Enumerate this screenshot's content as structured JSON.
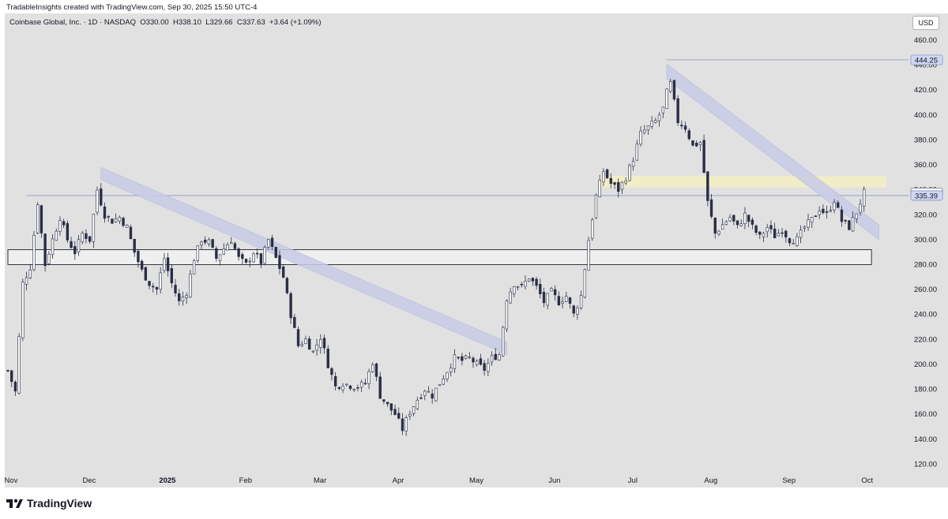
{
  "header": {
    "attribution": "TradableInsights created with TradingView.com, Sep 30, 2025 15:50 UTC-4"
  },
  "legend": {
    "symbol": "Coinbase Global, Inc. · 1D · NASDAQ",
    "open": "O330.00",
    "high": "H338.10",
    "low": "L329.66",
    "close": "C337.63",
    "change": "+3.64 (+1.09%)"
  },
  "currency": "USD",
  "footer": {
    "brand": "TradingView"
  },
  "colors": {
    "background": "#e1e1e1",
    "candle_up": "#ffffff",
    "candle_down": "#2a2e45",
    "candle_outline": "#2a2e45",
    "channel": "#c8cbe6",
    "support_zone": "#f2f2f2",
    "resistance_zone": "#f3eec4",
    "price_label_last": "#ffffff",
    "price_label_line": "#cfd8f3"
  },
  "chart_data": {
    "type": "candlestick",
    "title": "Coinbase Global, Inc. · 1D · NASDAQ",
    "ylim": [
      110,
      470
    ],
    "y_ticks": [
      460,
      440,
      420,
      400,
      380,
      360,
      340,
      320,
      300,
      280,
      260,
      240,
      220,
      200,
      180,
      160,
      140,
      120
    ],
    "x_labels": [
      "Nov",
      "Dec",
      "2025",
      "Feb",
      "Mar",
      "Apr",
      "May",
      "Jun",
      "Jul",
      "Aug",
      "Sep",
      "Oct"
    ],
    "x_label_day_index": [
      0,
      21,
      42,
      63,
      83,
      104,
      125,
      146,
      167,
      188,
      209,
      230
    ],
    "x_range_days": [
      0,
      236
    ],
    "price_labels": [
      {
        "value": 444.25,
        "style": "highlight"
      },
      {
        "value": 337.63,
        "style": "last"
      },
      {
        "value": 335.39,
        "style": "highlight"
      }
    ],
    "horizontal_lines": [
      {
        "value": 444.25,
        "from_day": 177
      },
      {
        "value": 335.39,
        "from_day": 5
      }
    ],
    "zones": [
      {
        "kind": "support",
        "low": 280,
        "high": 292,
        "from_day": 0,
        "to_day": 232
      },
      {
        "kind": "resistance",
        "low": 342,
        "high": 351,
        "from_day": 159,
        "to_day": 236
      }
    ],
    "channels": [
      {
        "from": [
          25,
          358
        ],
        "to": [
          134,
          218
        ],
        "width": 10
      },
      {
        "from": [
          177,
          441
        ],
        "to": [
          234,
          312
        ],
        "width": 12
      }
    ],
    "anchors": [
      [
        0,
        195
      ],
      [
        2,
        178
      ],
      [
        4,
        265
      ],
      [
        6,
        278
      ],
      [
        8,
        330
      ],
      [
        10,
        280
      ],
      [
        12,
        300
      ],
      [
        14,
        318
      ],
      [
        16,
        300
      ],
      [
        18,
        290
      ],
      [
        20,
        305
      ],
      [
        22,
        300
      ],
      [
        24,
        340
      ],
      [
        26,
        320
      ],
      [
        28,
        315
      ],
      [
        30,
        318
      ],
      [
        32,
        310
      ],
      [
        34,
        290
      ],
      [
        36,
        275
      ],
      [
        38,
        265
      ],
      [
        40,
        260
      ],
      [
        42,
        285
      ],
      [
        44,
        265
      ],
      [
        46,
        250
      ],
      [
        48,
        258
      ],
      [
        50,
        285
      ],
      [
        52,
        300
      ],
      [
        54,
        298
      ],
      [
        56,
        285
      ],
      [
        58,
        293
      ],
      [
        60,
        300
      ],
      [
        62,
        285
      ],
      [
        64,
        280
      ],
      [
        66,
        290
      ],
      [
        68,
        282
      ],
      [
        70,
        300
      ],
      [
        72,
        285
      ],
      [
        74,
        270
      ],
      [
        76,
        240
      ],
      [
        78,
        215
      ],
      [
        80,
        220
      ],
      [
        82,
        210
      ],
      [
        84,
        222
      ],
      [
        86,
        200
      ],
      [
        88,
        182
      ],
      [
        90,
        185
      ],
      [
        92,
        183
      ],
      [
        94,
        182
      ],
      [
        96,
        185
      ],
      [
        98,
        202
      ],
      [
        100,
        175
      ],
      [
        102,
        167
      ],
      [
        104,
        160
      ],
      [
        106,
        148
      ],
      [
        108,
        162
      ],
      [
        110,
        172
      ],
      [
        112,
        180
      ],
      [
        114,
        175
      ],
      [
        116,
        185
      ],
      [
        118,
        195
      ],
      [
        120,
        205
      ],
      [
        122,
        203
      ],
      [
        124,
        205
      ],
      [
        126,
        200
      ],
      [
        128,
        196
      ],
      [
        130,
        205
      ],
      [
        132,
        208
      ],
      [
        134,
        253
      ],
      [
        136,
        265
      ],
      [
        138,
        262
      ],
      [
        140,
        270
      ],
      [
        142,
        262
      ],
      [
        144,
        250
      ],
      [
        146,
        258
      ],
      [
        148,
        250
      ],
      [
        150,
        255
      ],
      [
        152,
        240
      ],
      [
        154,
        255
      ],
      [
        156,
        300
      ],
      [
        158,
        335
      ],
      [
        160,
        355
      ],
      [
        162,
        345
      ],
      [
        164,
        340
      ],
      [
        166,
        350
      ],
      [
        168,
        365
      ],
      [
        170,
        385
      ],
      [
        172,
        390
      ],
      [
        174,
        395
      ],
      [
        176,
        405
      ],
      [
        177,
        418
      ],
      [
        178,
        425
      ],
      [
        180,
        395
      ],
      [
        182,
        390
      ],
      [
        184,
        375
      ],
      [
        186,
        378
      ],
      [
        188,
        330
      ],
      [
        190,
        305
      ],
      [
        192,
        312
      ],
      [
        194,
        318
      ],
      [
        196,
        310
      ],
      [
        198,
        320
      ],
      [
        200,
        310
      ],
      [
        202,
        302
      ],
      [
        204,
        310
      ],
      [
        206,
        303
      ],
      [
        208,
        308
      ],
      [
        210,
        300
      ],
      [
        212,
        300
      ],
      [
        214,
        310
      ],
      [
        216,
        316
      ],
      [
        218,
        325
      ],
      [
        220,
        320
      ],
      [
        222,
        332
      ],
      [
        224,
        315
      ],
      [
        226,
        310
      ],
      [
        228,
        322
      ],
      [
        230,
        337.63
      ]
    ]
  }
}
